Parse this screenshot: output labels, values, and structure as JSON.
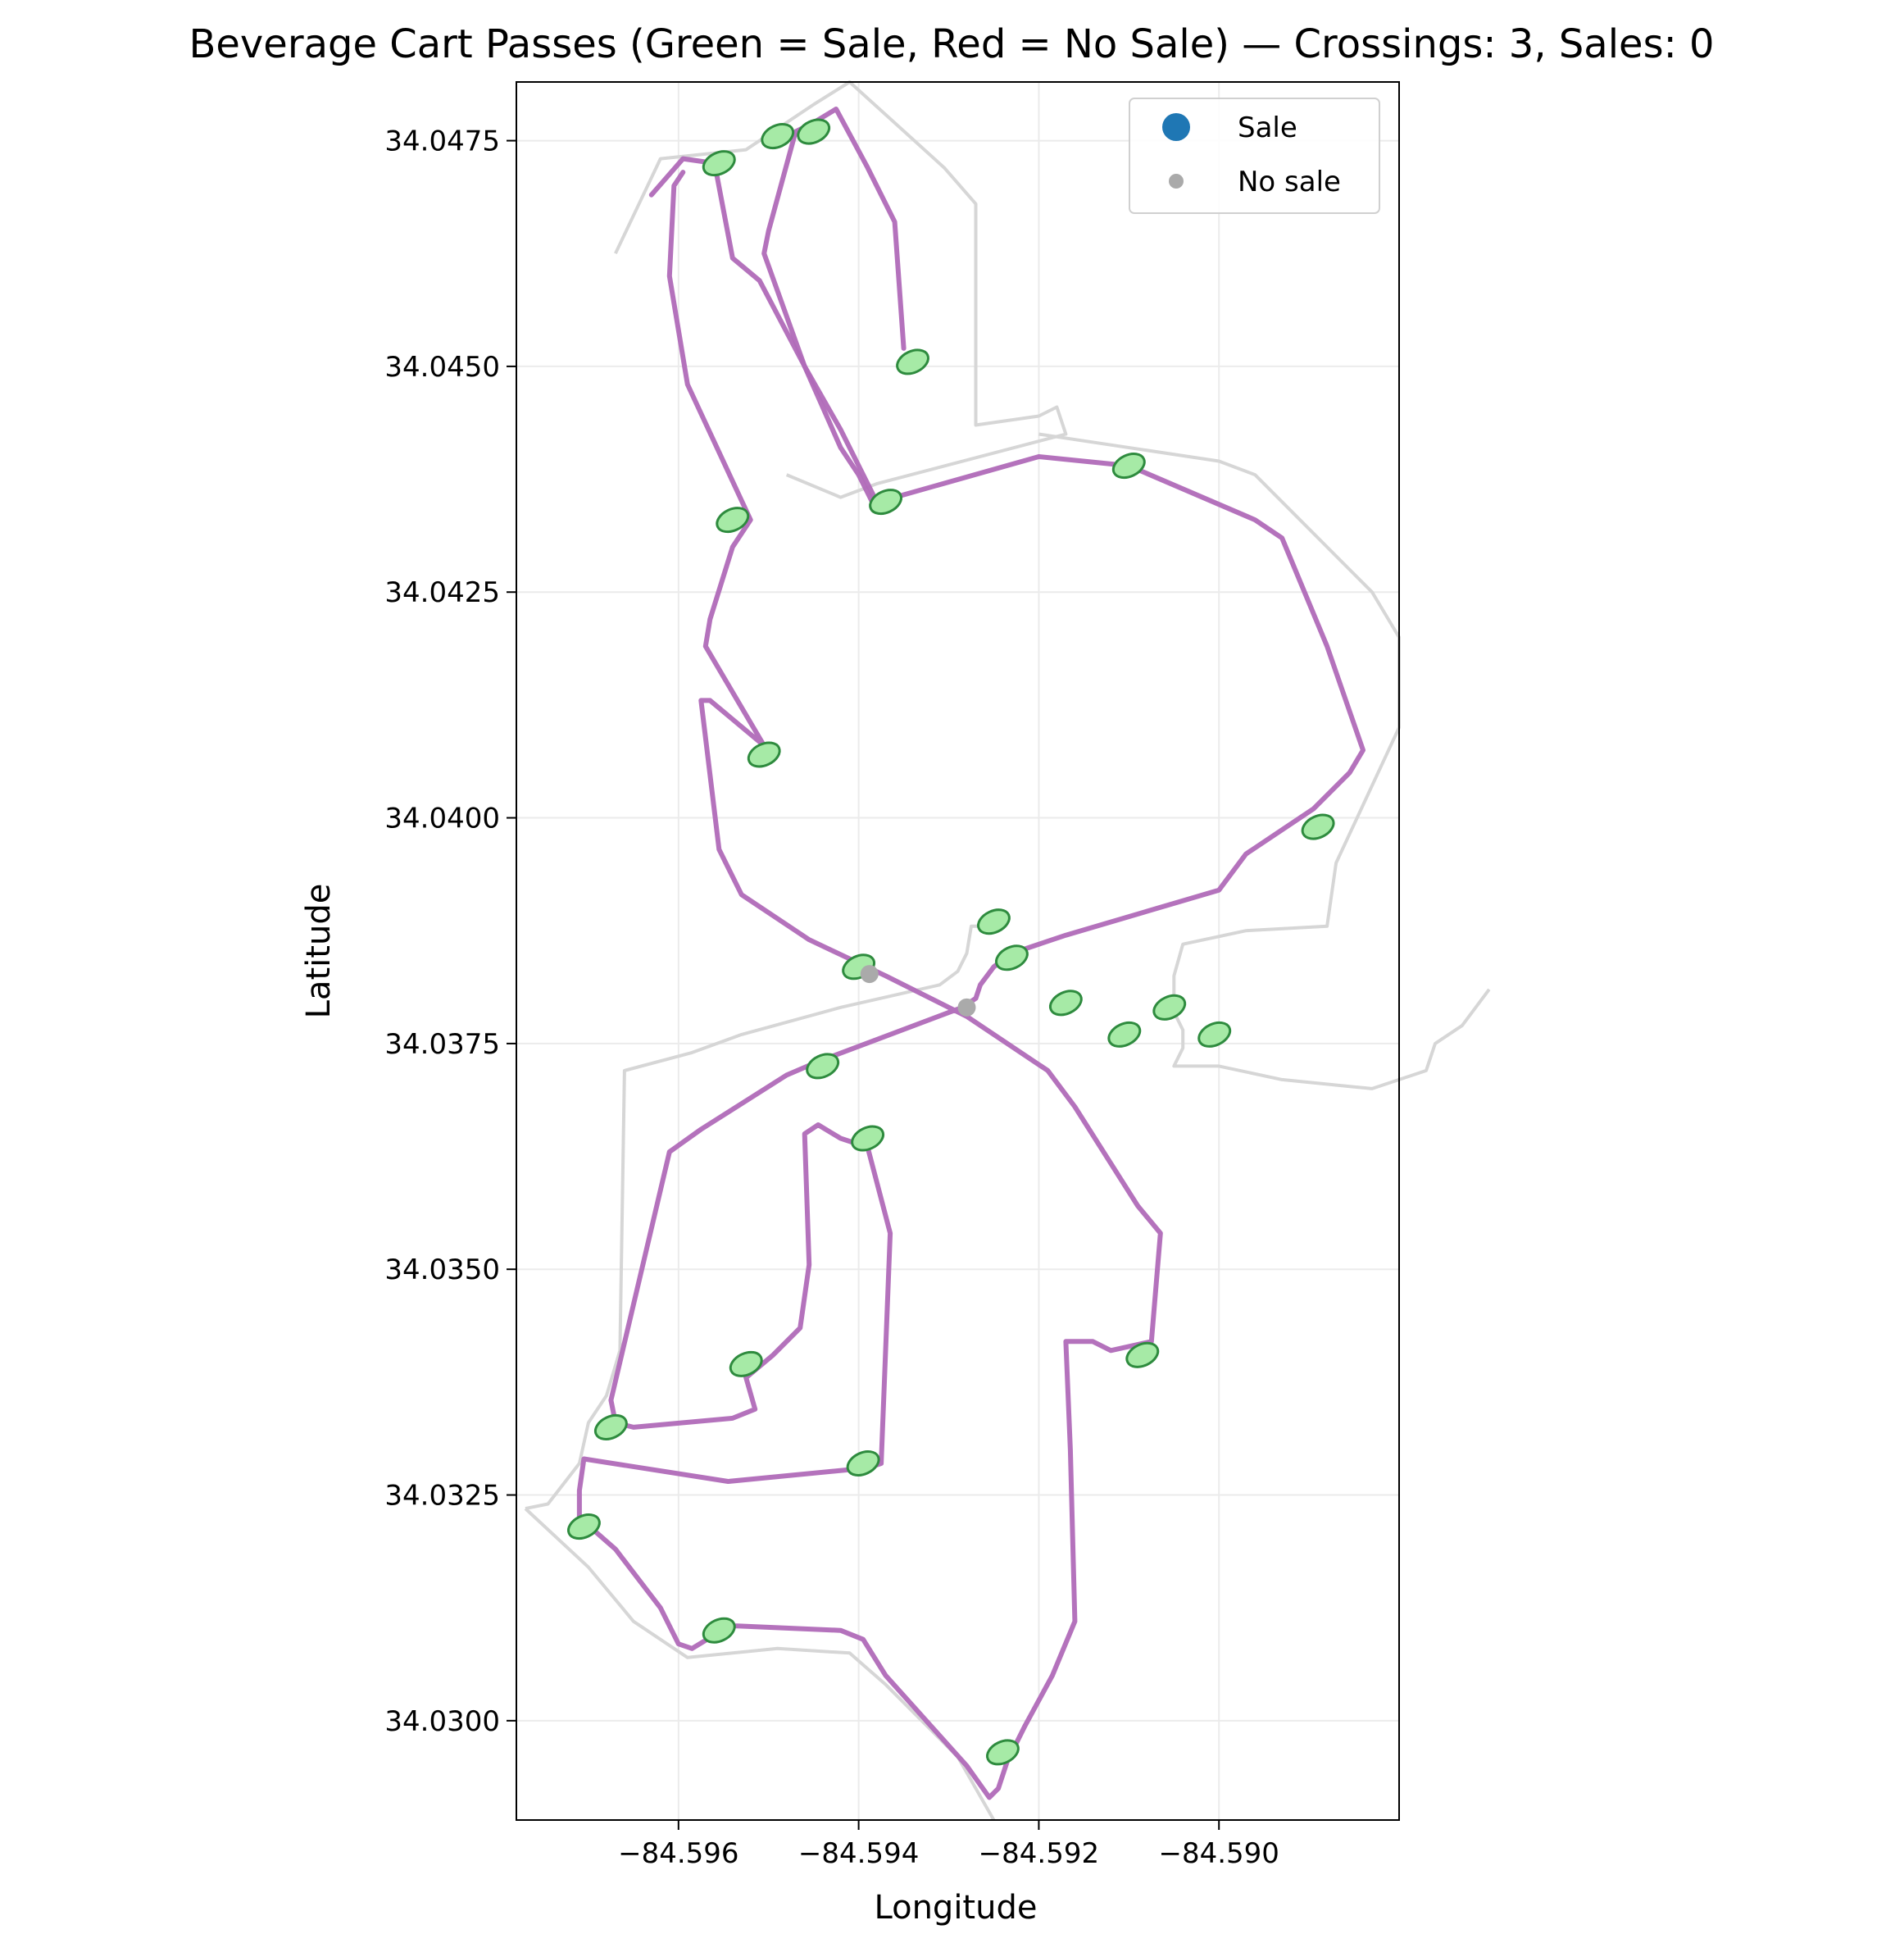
{
  "chart_data": {
    "type": "line",
    "title": "Beverage Cart Passes (Green = Sale, Red = No Sale) — Crossings: 3, Sales: 0",
    "xlabel": "Longitude",
    "ylabel": "Latitude",
    "xlim": [
      -84.5978,
      -84.588
    ],
    "ylim": [
      34.0289,
      34.04815
    ],
    "x_ticks": [
      -84.596,
      -84.594,
      -84.592,
      -84.59
    ],
    "x_tick_labels": [
      "−84.596",
      "−84.594",
      "−84.592",
      "−84.590"
    ],
    "y_ticks": [
      34.03,
      34.0325,
      34.035,
      34.0375,
      34.04,
      34.0425,
      34.045,
      34.0475
    ],
    "y_tick_labels": [
      "34.0300",
      "34.0325",
      "34.0350",
      "34.0375",
      "34.0400",
      "34.0425",
      "34.0450",
      "34.0475"
    ],
    "grid": true,
    "legend": {
      "position": "top-right",
      "entries": [
        {
          "label": "Sale",
          "color": "#1f77b4",
          "marker": "large-circle"
        },
        {
          "label": "No sale",
          "color": "#aaaaaa",
          "marker": "small-circle"
        }
      ]
    },
    "colors": {
      "cart_path": "#b06ab8",
      "course_outline": "#d6d6d6",
      "green_fill": "#a6eaa6",
      "green_edge": "#2e8b3e",
      "no_sale": "#aaaaaa"
    },
    "series": [
      {
        "kind": "cart_path",
        "points": [
          [
            -84.5963,
            34.0469
          ],
          [
            -84.59595,
            34.0473
          ],
          [
            -84.5956,
            34.04725
          ],
          [
            -84.5954,
            34.0462
          ],
          [
            -84.5951,
            34.04595
          ],
          [
            -84.5946,
            34.045
          ],
          [
            -84.5942,
            34.0441
          ],
          [
            -84.594,
            34.0438
          ],
          [
            -84.59385,
            34.0435
          ],
          [
            -84.5936,
            34.04355
          ],
          [
            -84.592,
            34.044
          ],
          [
            -84.591,
            34.0439
          ],
          [
            -84.5896,
            34.0433
          ],
          [
            -84.5893,
            34.0431
          ],
          [
            -84.5888,
            34.0419
          ],
          [
            -84.5884,
            34.04075
          ],
          [
            -84.58855,
            34.0405
          ],
          [
            -84.58895,
            34.0401
          ],
          [
            -84.5897,
            34.0396
          ],
          [
            -84.59,
            34.0392
          ],
          [
            -84.5917,
            34.0387
          ],
          [
            -84.5923,
            34.0385
          ],
          [
            -84.5925,
            34.03835
          ],
          [
            -84.59265,
            34.03815
          ],
          [
            -84.5927,
            34.038
          ],
          [
            -84.59285,
            34.0379
          ],
          [
            -84.59445,
            34.0373
          ],
          [
            -84.5948,
            34.03715
          ],
          [
            -84.59575,
            34.03655
          ],
          [
            -84.5961,
            34.0363
          ],
          [
            -84.59675,
            34.03355
          ],
          [
            -84.5967,
            34.0333
          ],
          [
            -84.5965,
            34.03325
          ],
          [
            -84.5954,
            34.03335
          ],
          [
            -84.59515,
            34.03345
          ],
          [
            -84.59525,
            34.0338
          ],
          [
            -84.59495,
            34.03405
          ],
          [
            -84.59465,
            34.03435
          ],
          [
            -84.59455,
            34.03505
          ],
          [
            -84.5946,
            34.0365
          ],
          [
            -84.59445,
            34.0366
          ],
          [
            -84.5942,
            34.03645
          ],
          [
            -84.5939,
            34.03635
          ],
          [
            -84.59365,
            34.0354
          ],
          [
            -84.59375,
            34.03285
          ],
          [
            -84.5939,
            34.0328
          ],
          [
            -84.59545,
            34.03265
          ],
          [
            -84.59705,
            34.0329
          ],
          [
            -84.5971,
            34.03255
          ],
          [
            -84.5971,
            34.03225
          ],
          [
            -84.5967,
            34.0319
          ],
          [
            -84.5962,
            34.03125
          ],
          [
            -84.596,
            34.03085
          ],
          [
            -84.59585,
            34.0308
          ],
          [
            -84.5956,
            34.03095
          ],
          [
            -84.5955,
            34.03105
          ],
          [
            -84.59535,
            34.03105
          ],
          [
            -84.5942,
            34.031
          ],
          [
            -84.59395,
            34.0309
          ],
          [
            -84.5937,
            34.0305
          ],
          [
            -84.5928,
            34.0295
          ],
          [
            -84.59255,
            34.02915
          ],
          [
            -84.59245,
            34.02925
          ],
          [
            -84.59235,
            34.02955
          ],
          [
            -84.59215,
            34.02995
          ],
          [
            -84.59185,
            34.0305
          ],
          [
            -84.5916,
            34.0311
          ],
          [
            -84.59165,
            34.033
          ],
          [
            -84.5917,
            34.0342
          ],
          [
            -84.5914,
            34.0342
          ],
          [
            -84.5912,
            34.0341
          ],
          [
            -84.59075,
            34.0342
          ],
          [
            -84.5907,
            34.0348
          ],
          [
            -84.59065,
            34.0354
          ],
          [
            -84.5909,
            34.0357
          ],
          [
            -84.5916,
            34.0368
          ],
          [
            -84.5919,
            34.0372
          ],
          [
            -84.5928,
            34.0378
          ],
          [
            -84.5934,
            34.0381
          ],
          [
            -84.5937,
            34.03825
          ],
          [
            -84.59455,
            34.03865
          ],
          [
            -84.5953,
            34.03915
          ],
          [
            -84.59555,
            34.03965
          ],
          [
            -84.59575,
            34.0413
          ],
          [
            -84.59565,
            34.0413
          ],
          [
            -84.59505,
            34.0408
          ],
          [
            -84.5957,
            34.0419
          ],
          [
            -84.59565,
            34.0422
          ],
          [
            -84.5954,
            34.043
          ],
          [
            -84.5952,
            34.0433
          ],
          [
            -84.5959,
            34.0448
          ],
          [
            -84.5961,
            34.046
          ],
          [
            -84.59605,
            34.047
          ],
          [
            -84.59595,
            34.04715
          ]
        ]
      },
      {
        "kind": "cart_path_back",
        "points": [
          [
            -84.5938,
            34.0435
          ],
          [
            -84.5942,
            34.0443
          ],
          [
            -84.5946,
            34.045
          ],
          [
            -84.59505,
            34.04625
          ],
          [
            -84.595,
            34.0465
          ],
          [
            -84.5947,
            34.0476
          ],
          [
            -84.5945,
            34.0477
          ],
          [
            -84.59425,
            34.04785
          ],
          [
            -84.5939,
            34.0472
          ],
          [
            -84.5936,
            34.0466
          ],
          [
            -84.5935,
            34.0452
          ]
        ]
      }
    ],
    "outlines": [
      {
        "points": [
          [
            -84.5967,
            34.04625
          ],
          [
            -84.5962,
            34.0473
          ],
          [
            -84.59525,
            34.0474
          ],
          [
            -84.5945,
            34.0479
          ],
          [
            -84.5941,
            34.04815
          ],
          [
            -84.59305,
            34.0472
          ],
          [
            -84.5927,
            34.0468
          ],
          [
            -84.5927,
            34.04435
          ],
          [
            -84.592,
            34.04445
          ],
          [
            -84.5918,
            34.04455
          ],
          [
            -84.5917,
            34.04425
          ],
          [
            -84.5938,
            34.0437
          ],
          [
            -84.5942,
            34.04355
          ],
          [
            -84.5948,
            34.0438
          ]
        ]
      },
      {
        "points": [
          [
            -84.592,
            34.04425
          ],
          [
            -84.59,
            34.04395
          ],
          [
            -84.5896,
            34.0438
          ],
          [
            -84.5883,
            34.0425
          ],
          [
            -84.588,
            34.042
          ],
          [
            -84.588,
            34.041
          ],
          [
            -84.5887,
            34.0395
          ],
          [
            -84.5888,
            34.0388
          ],
          [
            -84.5897,
            34.03875
          ],
          [
            -84.5904,
            34.0386
          ],
          [
            -84.5905,
            34.03825
          ],
          [
            -84.5905,
            34.03785
          ],
          [
            -84.5904,
            34.03765
          ],
          [
            -84.5904,
            34.03745
          ],
          [
            -84.5905,
            34.03725
          ],
          [
            -84.59,
            34.03725
          ],
          [
            -84.5893,
            34.0371
          ],
          [
            -84.5883,
            34.037
          ],
          [
            -84.5877,
            34.0372
          ],
          [
            -84.5876,
            34.0375
          ],
          [
            -84.5873,
            34.0377
          ],
          [
            -84.587,
            34.0381
          ]
        ]
      },
      {
        "points": [
          [
            -84.5977,
            34.03235
          ],
          [
            -84.59745,
            34.0324
          ],
          [
            -84.5971,
            34.03285
          ],
          [
            -84.597,
            34.0333
          ],
          [
            -84.5968,
            34.0336
          ],
          [
            -84.59665,
            34.0341
          ],
          [
            -84.5966,
            34.0372
          ],
          [
            -84.59585,
            34.0374
          ],
          [
            -84.5953,
            34.0376
          ],
          [
            -84.5942,
            34.0379
          ],
          [
            -84.5931,
            34.03815
          ],
          [
            -84.5929,
            34.0383
          ],
          [
            -84.5928,
            34.0385
          ],
          [
            -84.59275,
            34.0388
          ],
          [
            -84.5926,
            34.0388
          ]
        ]
      },
      {
        "points": [
          [
            -84.5977,
            34.03235
          ],
          [
            -84.597,
            34.0317
          ],
          [
            -84.5965,
            34.0311
          ],
          [
            -84.5959,
            34.0307
          ],
          [
            -84.5949,
            34.0308
          ],
          [
            -84.5941,
            34.03075
          ],
          [
            -84.5937,
            34.0304
          ],
          [
            -84.5929,
            34.0296
          ],
          [
            -84.5925,
            34.0289
          ]
        ]
      }
    ],
    "green_patches": [
      {
        "x": -84.59555,
        "y": 34.04725
      },
      {
        "x": -84.5949,
        "y": 34.04755
      },
      {
        "x": -84.5945,
        "y": 34.0476
      },
      {
        "x": -84.5934,
        "y": 34.04505
      },
      {
        "x": -84.5937,
        "y": 34.0435
      },
      {
        "x": -84.591,
        "y": 34.0439
      },
      {
        "x": -84.5954,
        "y": 34.0433
      },
      {
        "x": -84.59505,
        "y": 34.0407
      },
      {
        "x": -84.5889,
        "y": 34.0399
      },
      {
        "x": -84.5925,
        "y": 34.03885
      },
      {
        "x": -84.5923,
        "y": 34.03845
      },
      {
        "x": -84.5917,
        "y": 34.03795
      },
      {
        "x": -84.59105,
        "y": 34.0376
      },
      {
        "x": -84.59055,
        "y": 34.0379
      },
      {
        "x": -84.59005,
        "y": 34.0376
      },
      {
        "x": -84.594,
        "y": 34.03835
      },
      {
        "x": -84.5944,
        "y": 34.03725
      },
      {
        "x": -84.5939,
        "y": 34.03645
      },
      {
        "x": -84.59525,
        "y": 34.03395
      },
      {
        "x": -84.59675,
        "y": 34.03325
      },
      {
        "x": -84.59395,
        "y": 34.03285
      },
      {
        "x": -84.59705,
        "y": 34.03215
      },
      {
        "x": -84.59555,
        "y": 34.031
      },
      {
        "x": -84.59085,
        "y": 34.03405
      },
      {
        "x": -84.5924,
        "y": 34.02965
      }
    ],
    "no_sale_points": [
      {
        "x": -84.59388,
        "y": 34.03827
      },
      {
        "x": -84.5928,
        "y": 34.0379
      }
    ]
  }
}
